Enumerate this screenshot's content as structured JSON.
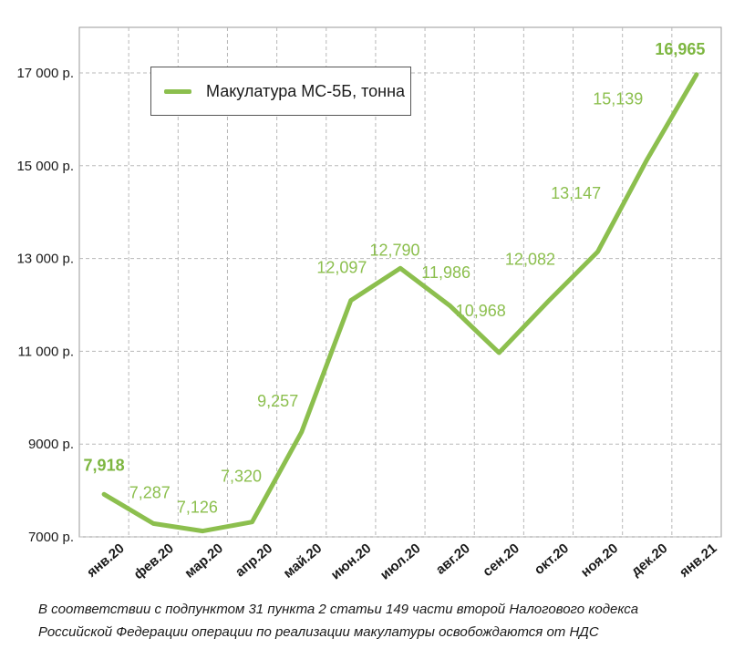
{
  "chart_data": {
    "type": "line",
    "categories": [
      "янв.20",
      "фев.20",
      "мар.20",
      "апр.20",
      "май.20",
      "июн.20",
      "июл.20",
      "авг.20",
      "сен.20",
      "окт.20",
      "ноя.20",
      "дек.20",
      "янв.21"
    ],
    "series": [
      {
        "name": "Макулатура МС-5Б, тонна",
        "values": [
          7918,
          7287,
          7126,
          7320,
          9257,
          12097,
          12790,
          11986,
          10968,
          12082,
          13147,
          15139,
          16965
        ],
        "labels": [
          "7,918",
          "7,287",
          "7,126",
          "7,320",
          "9,257",
          "12,097",
          "12,790",
          "11,986",
          "10,968",
          "12,082",
          "13,147",
          "15,139",
          "16,965"
        ],
        "bold_labels": [
          0,
          12
        ],
        "color": "#8cbf4e"
      }
    ],
    "yticks": [
      {
        "value": 7000,
        "label": "7000 р."
      },
      {
        "value": 9000,
        "label": "9000 р."
      },
      {
        "value": 11000,
        "label": "11 000 р."
      },
      {
        "value": 13000,
        "label": "13 000 р."
      },
      {
        "value": 15000,
        "label": "15 000 р."
      },
      {
        "value": 17000,
        "label": "17 000 р."
      }
    ],
    "ylim": [
      7000,
      17000
    ],
    "grid": true,
    "legend_position": "top-left"
  },
  "legend": {
    "label": "Макулатура МС-5Б, тонна"
  },
  "footnote": {
    "line1": "В соответствии с подпунктом 31 пункта 2 статьи 149 части второй Налогового кодекса",
    "line2": "Российской Федерации операции по реализации макулатуры освобождаются от НДС"
  }
}
